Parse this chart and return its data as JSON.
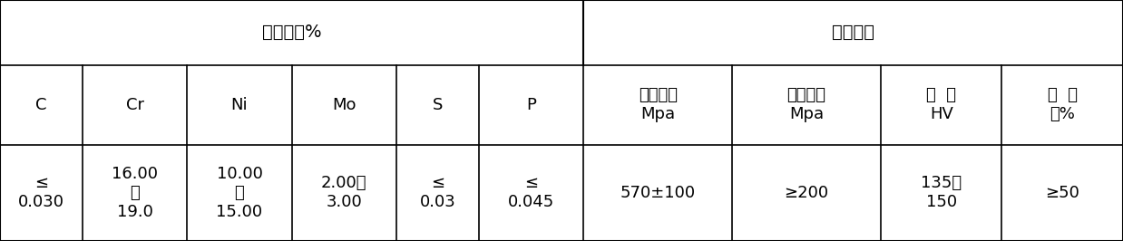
{
  "header_row1": [
    "化学成份%",
    "机械性能"
  ],
  "header_row1_spans": [
    6,
    4
  ],
  "header_row2": [
    "C",
    "Cr",
    "Ni",
    "Mo",
    "S",
    "P",
    "抗拉强度\nMpa",
    "屈服强度\nMpa",
    "硬  度\nHV",
    "伸  长\n率%"
  ],
  "data_row": [
    "≤\n0.030",
    "16.00\n～\n19.0",
    "10.00\n～\n15.00",
    "2.00～\n3.00",
    "≤\n0.03",
    "≤\n0.045",
    "570±100",
    "≥200",
    "135～\n150",
    "≥50"
  ],
  "col_widths": [
    0.75,
    0.95,
    0.95,
    0.95,
    0.75,
    0.95,
    1.35,
    1.35,
    1.1,
    1.1
  ],
  "background_color": "#ffffff",
  "border_color": "#000000",
  "text_color": "#000000",
  "fontsize": 13,
  "header_fontsize": 14
}
